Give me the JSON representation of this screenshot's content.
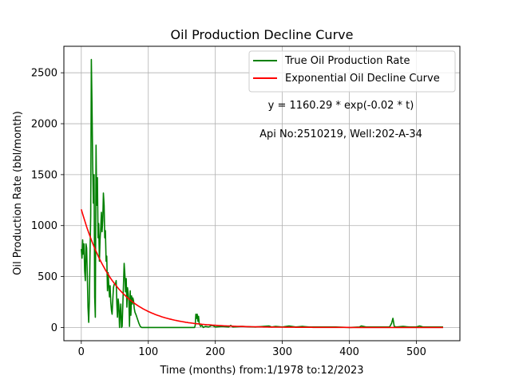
{
  "chart_data": {
    "type": "line",
    "title": "Oil Production Decline Curve",
    "xlabel": "Time (months) from:1/1978 to:12/2023",
    "ylabel": "Oil Production Rate (bbl/month)",
    "xlim": [
      -26,
      565
    ],
    "ylim": [
      -130,
      2760
    ],
    "xticks": [
      0,
      100,
      200,
      300,
      400,
      500
    ],
    "yticks": [
      0,
      500,
      1000,
      1500,
      2000,
      2500
    ],
    "grid": true,
    "legend_position": "top-right",
    "annotations": [
      "y = 1160.29 * exp(-0.02 * t)",
      "Api No:2510219, Well:202-A-34"
    ],
    "series": [
      {
        "name": "True Oil Production Rate",
        "color": "#008000",
        "points": [
          [
            0,
            770
          ],
          [
            1,
            680
          ],
          [
            2,
            860
          ],
          [
            3,
            720
          ],
          [
            4,
            820
          ],
          [
            5,
            560
          ],
          [
            6,
            460
          ],
          [
            7,
            820
          ],
          [
            8,
            780
          ],
          [
            9,
            500
          ],
          [
            10,
            200
          ],
          [
            11,
            50
          ],
          [
            12,
            260
          ],
          [
            13,
            700
          ],
          [
            14,
            1100
          ],
          [
            15,
            2630
          ],
          [
            16,
            2200
          ],
          [
            17,
            1600
          ],
          [
            18,
            1220
          ],
          [
            19,
            1500
          ],
          [
            20,
            300
          ],
          [
            21,
            100
          ],
          [
            22,
            1790
          ],
          [
            23,
            1200
          ],
          [
            24,
            1470
          ],
          [
            25,
            880
          ],
          [
            26,
            1020
          ],
          [
            27,
            650
          ],
          [
            28,
            860
          ],
          [
            29,
            980
          ],
          [
            30,
            1130
          ],
          [
            31,
            940
          ],
          [
            32,
            1050
          ],
          [
            33,
            1320
          ],
          [
            34,
            1200
          ],
          [
            35,
            880
          ],
          [
            36,
            950
          ],
          [
            37,
            650
          ],
          [
            38,
            700
          ],
          [
            39,
            360
          ],
          [
            40,
            540
          ],
          [
            41,
            420
          ],
          [
            42,
            300
          ],
          [
            43,
            410
          ],
          [
            44,
            250
          ],
          [
            45,
            170
          ],
          [
            46,
            130
          ],
          [
            47,
            280
          ],
          [
            48,
            390
          ],
          [
            49,
            420
          ],
          [
            50,
            430
          ],
          [
            51,
            420
          ],
          [
            52,
            460
          ],
          [
            53,
            240
          ],
          [
            54,
            100
          ],
          [
            55,
            280
          ],
          [
            56,
            220
          ],
          [
            57,
            0
          ],
          [
            58,
            150
          ],
          [
            59,
            230
          ],
          [
            60,
            0
          ],
          [
            61,
            10
          ],
          [
            62,
            240
          ],
          [
            63,
            430
          ],
          [
            64,
            630
          ],
          [
            65,
            520
          ],
          [
            66,
            350
          ],
          [
            67,
            480
          ],
          [
            68,
            200
          ],
          [
            69,
            390
          ],
          [
            70,
            330
          ],
          [
            71,
            260
          ],
          [
            72,
            10
          ],
          [
            73,
            360
          ],
          [
            74,
            120
          ],
          [
            75,
            310
          ],
          [
            76,
            230
          ],
          [
            77,
            290
          ],
          [
            78,
            260
          ],
          [
            79,
            190
          ],
          [
            80,
            150
          ],
          [
            82,
            120
          ],
          [
            84,
            80
          ],
          [
            86,
            40
          ],
          [
            88,
            10
          ],
          [
            90,
            0
          ],
          [
            100,
            0
          ],
          [
            120,
            0
          ],
          [
            140,
            0
          ],
          [
            160,
            0
          ],
          [
            169,
            0
          ],
          [
            170,
            20
          ],
          [
            171,
            130
          ],
          [
            172,
            90
          ],
          [
            173,
            130
          ],
          [
            174,
            60
          ],
          [
            175,
            110
          ],
          [
            176,
            40
          ],
          [
            178,
            10
          ],
          [
            180,
            20
          ],
          [
            182,
            0
          ],
          [
            185,
            10
          ],
          [
            190,
            5
          ],
          [
            195,
            20
          ],
          [
            200,
            5
          ],
          [
            210,
            10
          ],
          [
            220,
            5
          ],
          [
            223,
            20
          ],
          [
            226,
            5
          ],
          [
            240,
            10
          ],
          [
            260,
            5
          ],
          [
            280,
            15
          ],
          [
            284,
            5
          ],
          [
            290,
            10
          ],
          [
            300,
            5
          ],
          [
            310,
            15
          ],
          [
            320,
            5
          ],
          [
            330,
            10
          ],
          [
            340,
            5
          ],
          [
            360,
            5
          ],
          [
            380,
            5
          ],
          [
            400,
            0
          ],
          [
            415,
            5
          ],
          [
            418,
            15
          ],
          [
            425,
            5
          ],
          [
            440,
            5
          ],
          [
            460,
            5
          ],
          [
            463,
            40
          ],
          [
            465,
            90
          ],
          [
            467,
            10
          ],
          [
            470,
            5
          ],
          [
            480,
            10
          ],
          [
            490,
            5
          ],
          [
            500,
            5
          ],
          [
            505,
            15
          ],
          [
            510,
            5
          ],
          [
            520,
            5
          ],
          [
            530,
            5
          ],
          [
            540,
            5
          ]
        ]
      },
      {
        "name": "Exponential Oil Decline Curve",
        "color": "#ff0000",
        "fit": {
          "a": 1160.29,
          "b": -0.02
        },
        "x_range": [
          0,
          540
        ]
      }
    ]
  }
}
